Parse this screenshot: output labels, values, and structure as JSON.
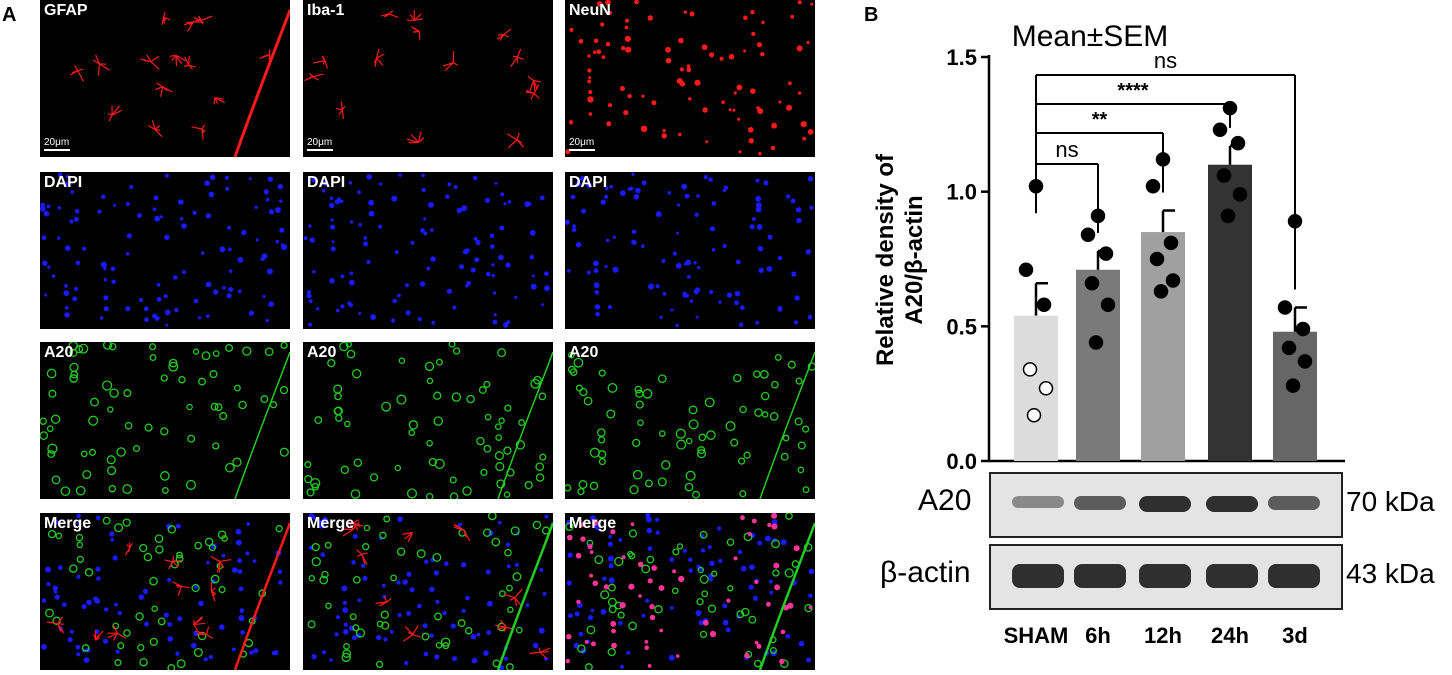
{
  "panels": {
    "a": "A",
    "b": "B"
  },
  "grid": {
    "scale_bar": "20μm",
    "tiles": [
      [
        {
          "label": "GFAP",
          "channel": "red",
          "color": "#ff1a1a"
        },
        {
          "label": "Iba-1",
          "channel": "red",
          "color": "#ff1a1a"
        },
        {
          "label": "NeuN",
          "channel": "red",
          "color": "#ff1a1a"
        }
      ],
      [
        {
          "label": "DAPI",
          "channel": "blue",
          "color": "#1a1aff"
        },
        {
          "label": "DAPI",
          "channel": "blue",
          "color": "#1a1aff"
        },
        {
          "label": "DAPI",
          "channel": "blue",
          "color": "#1a1aff"
        }
      ],
      [
        {
          "label": "A20",
          "channel": "green",
          "color": "#22cc22"
        },
        {
          "label": "A20",
          "channel": "green",
          "color": "#22cc22"
        },
        {
          "label": "A20",
          "channel": "green",
          "color": "#22cc22"
        }
      ],
      [
        {
          "label": "Merge",
          "channel": "merge",
          "color": "#ffffff"
        },
        {
          "label": "Merge",
          "channel": "merge",
          "color": "#ffffff"
        },
        {
          "label": "Merge",
          "channel": "merge",
          "color": "#ffffff"
        }
      ]
    ]
  },
  "chart_data": {
    "type": "bar",
    "title": "Mean±SEM",
    "ylabel_line1": "Relative density of",
    "ylabel_line2": "A20/β-actin",
    "categories": [
      "SHAM",
      "6h",
      "12h",
      "24h",
      "3d"
    ],
    "values": [
      0.54,
      0.71,
      0.85,
      1.1,
      0.48
    ],
    "sem": [
      0.12,
      0.07,
      0.08,
      0.07,
      0.09
    ],
    "bar_colors": [
      "#dcdcdc",
      "#7a7a7a",
      "#a0a0a0",
      "#333333",
      "#666666"
    ],
    "points": [
      [
        1.02,
        0.71,
        0.58,
        0.34,
        0.27,
        0.17
      ],
      [
        0.91,
        0.84,
        0.77,
        0.66,
        0.58,
        0.44
      ],
      [
        1.12,
        1.02,
        0.81,
        0.75,
        0.67,
        0.63
      ],
      [
        1.31,
        1.23,
        1.18,
        1.06,
        0.99,
        0.91
      ],
      [
        0.89,
        0.57,
        0.49,
        0.42,
        0.37,
        0.28
      ]
    ],
    "ylim": [
      0,
      1.5
    ],
    "yticks": [
      "0.0",
      "0.5",
      "1.0",
      "1.5"
    ],
    "ytick_values": [
      0,
      0.5,
      1.0,
      1.5
    ],
    "significance": [
      {
        "from": 0,
        "to": 1,
        "label": "ns"
      },
      {
        "from": 0,
        "to": 2,
        "label": "**"
      },
      {
        "from": 0,
        "to": 3,
        "label": "****"
      },
      {
        "from": 0,
        "to": 4,
        "label": "ns"
      }
    ]
  },
  "blot": {
    "rows": [
      {
        "label": "A20",
        "kda": "70 kDa",
        "intensity": [
          0.35,
          0.6,
          0.85,
          0.85,
          0.6
        ]
      },
      {
        "label": "β-actin",
        "kda": "43 kDa",
        "intensity": [
          0.85,
          0.85,
          0.85,
          0.85,
          0.85
        ]
      }
    ]
  }
}
